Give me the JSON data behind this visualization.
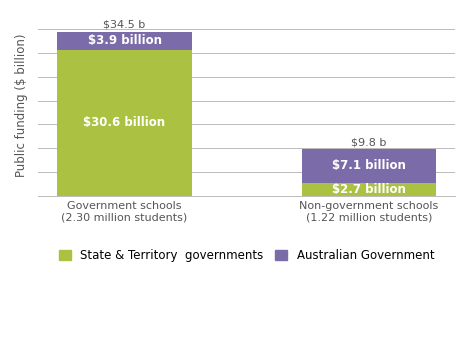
{
  "categories": [
    "Government schools\n(2.30 million students)",
    "Non-government schools\n(1.22 million students)"
  ],
  "state_values": [
    30.6,
    2.7
  ],
  "aus_values": [
    3.9,
    7.1
  ],
  "totals": [
    "$34.5 b",
    "$9.8 b"
  ],
  "state_labels": [
    "$30.6 billion",
    "$2.7 billion"
  ],
  "aus_labels": [
    "$3.9 billion",
    "$7.1 billion"
  ],
  "state_color": "#aac142",
  "aus_color": "#7b6ba8",
  "ylabel": "Public funding ($ billion)",
  "legend_state": "State & Territory  governments",
  "legend_aus": "Australian Government",
  "ylim": [
    0,
    38
  ],
  "num_gridlines": 8,
  "bar_width": 0.55,
  "label_fontsize": 8.5,
  "total_fontsize": 8,
  "axis_fontsize": 8,
  "ylabel_fontsize": 8.5,
  "legend_fontsize": 8.5,
  "background_color": "#ffffff",
  "grid_color": "#bbbbbb",
  "text_color": "#555555"
}
